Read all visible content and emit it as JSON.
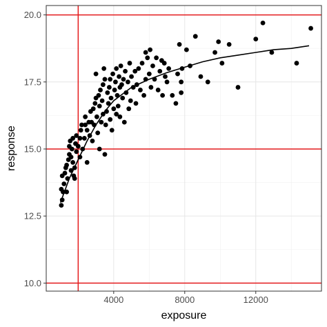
{
  "chart_data": {
    "type": "scatter",
    "title": "",
    "xlabel": "exposure",
    "ylabel": "response",
    "xlim": [
      200,
      15700
    ],
    "ylim": [
      9.7,
      20.35
    ],
    "x_ticks": [
      4000,
      8000,
      12000
    ],
    "x_tick_labels": [
      "4000",
      "8000",
      "12000"
    ],
    "y_ticks": [
      10.0,
      12.5,
      15.0,
      17.5,
      20.0
    ],
    "y_tick_labels": [
      "10.0",
      "12.5",
      "15.0",
      "17.5",
      "20.0"
    ],
    "grid": true,
    "legend": "none",
    "reference_lines": {
      "horizontal": [
        10.0,
        15.0,
        20.0
      ],
      "vertical": [
        2000
      ],
      "color": "#e41a1c"
    },
    "trend_line": {
      "color": "#000000",
      "points": [
        [
          1000,
          13.0
        ],
        [
          1500,
          13.9
        ],
        [
          2000,
          14.6
        ],
        [
          2500,
          15.3
        ],
        [
          3000,
          15.9
        ],
        [
          3500,
          16.4
        ],
        [
          4000,
          16.8
        ],
        [
          5000,
          17.3
        ],
        [
          6000,
          17.6
        ],
        [
          7000,
          17.85
        ],
        [
          8000,
          18.05
        ],
        [
          9000,
          18.25
        ],
        [
          10000,
          18.4
        ],
        [
          11000,
          18.5
        ],
        [
          12000,
          18.6
        ],
        [
          13000,
          18.7
        ],
        [
          14000,
          18.75
        ],
        [
          15000,
          18.85
        ]
      ]
    },
    "point_color": "#000000",
    "points": [
      [
        1050,
        12.9
      ],
      [
        1100,
        13.1
      ],
      [
        1050,
        13.5
      ],
      [
        1150,
        13.4
      ],
      [
        1200,
        13.7
      ],
      [
        1100,
        14.0
      ],
      [
        1250,
        14.1
      ],
      [
        1350,
        13.4
      ],
      [
        1400,
        13.9
      ],
      [
        1350,
        14.4
      ],
      [
        1450,
        14.6
      ],
      [
        1300,
        14.3
      ],
      [
        1500,
        14.8
      ],
      [
        1600,
        14.2
      ],
      [
        1700,
        14.5
      ],
      [
        1600,
        14.7
      ],
      [
        1750,
        14.0
      ],
      [
        1800,
        14.3
      ],
      [
        1800,
        13.9
      ],
      [
        1500,
        15.1
      ],
      [
        1550,
        15.3
      ],
      [
        1650,
        15.0
      ],
      [
        1700,
        15.4
      ],
      [
        1850,
        15.2
      ],
      [
        1900,
        14.9
      ],
      [
        1900,
        15.5
      ],
      [
        2000,
        15.1
      ],
      [
        2100,
        14.7
      ],
      [
        2100,
        15.4
      ],
      [
        2150,
        15.7
      ],
      [
        2250,
        15.0
      ],
      [
        2200,
        15.9
      ],
      [
        2350,
        15.4
      ],
      [
        2400,
        15.9
      ],
      [
        2400,
        16.2
      ],
      [
        2500,
        15.7
      ],
      [
        2500,
        14.5
      ],
      [
        2600,
        16.0
      ],
      [
        2650,
        15.5
      ],
      [
        2700,
        16.4
      ],
      [
        2750,
        16.0
      ],
      [
        2800,
        15.3
      ],
      [
        2850,
        16.5
      ],
      [
        2900,
        15.9
      ],
      [
        2950,
        16.7
      ],
      [
        3000,
        17.8
      ],
      [
        3000,
        16.9
      ],
      [
        3050,
        16.2
      ],
      [
        3100,
        15.6
      ],
      [
        3150,
        17.0
      ],
      [
        3200,
        15.0
      ],
      [
        3200,
        16.6
      ],
      [
        3250,
        17.2
      ],
      [
        3300,
        16.0
      ],
      [
        3350,
        16.8
      ],
      [
        3400,
        17.4
      ],
      [
        3400,
        16.3
      ],
      [
        3450,
        18.0
      ],
      [
        3500,
        14.8
      ],
      [
        3500,
        17.6
      ],
      [
        3550,
        15.9
      ],
      [
        3600,
        16.4
      ],
      [
        3650,
        17.1
      ],
      [
        3700,
        16.7
      ],
      [
        3750,
        17.3
      ],
      [
        3800,
        16.1
      ],
      [
        3800,
        17.6
      ],
      [
        3850,
        16.9
      ],
      [
        3900,
        15.7
      ],
      [
        3950,
        17.8
      ],
      [
        4000,
        16.5
      ],
      [
        4050,
        17.2
      ],
      [
        4100,
        17.5
      ],
      [
        4150,
        16.3
      ],
      [
        4150,
        18.0
      ],
      [
        4200,
        17.0
      ],
      [
        4250,
        16.6
      ],
      [
        4300,
        17.7
      ],
      [
        4350,
        16.2
      ],
      [
        4350,
        17.3
      ],
      [
        4400,
        18.1
      ],
      [
        4450,
        17.4
      ],
      [
        4500,
        16.9
      ],
      [
        4550,
        17.6
      ],
      [
        4600,
        16.0
      ],
      [
        4650,
        17.9
      ],
      [
        4700,
        17.1
      ],
      [
        4800,
        17.5
      ],
      [
        4850,
        16.5
      ],
      [
        4900,
        18.2
      ],
      [
        4950,
        16.8
      ],
      [
        5000,
        17.7
      ],
      [
        5100,
        17.3
      ],
      [
        5200,
        17.9
      ],
      [
        5250,
        16.7
      ],
      [
        5300,
        17.4
      ],
      [
        5400,
        18.0
      ],
      [
        5500,
        17.2
      ],
      [
        5600,
        18.2
      ],
      [
        5700,
        17.0
      ],
      [
        5800,
        18.6
      ],
      [
        5800,
        17.6
      ],
      [
        5900,
        18.4
      ],
      [
        6000,
        17.8
      ],
      [
        6050,
        18.7
      ],
      [
        6100,
        17.3
      ],
      [
        6200,
        18.1
      ],
      [
        6300,
        17.6
      ],
      [
        6400,
        18.4
      ],
      [
        6500,
        17.2
      ],
      [
        6600,
        17.9
      ],
      [
        6700,
        18.3
      ],
      [
        6750,
        17.0
      ],
      [
        6850,
        18.2
      ],
      [
        6900,
        17.7
      ],
      [
        7000,
        17.5
      ],
      [
        7100,
        18.0
      ],
      [
        7300,
        17.0
      ],
      [
        7500,
        16.7
      ],
      [
        7600,
        17.8
      ],
      [
        7700,
        18.9
      ],
      [
        7800,
        17.5
      ],
      [
        7800,
        17.1
      ],
      [
        7850,
        18.0
      ],
      [
        8100,
        18.7
      ],
      [
        8300,
        18.1
      ],
      [
        8600,
        19.2
      ],
      [
        8900,
        17.7
      ],
      [
        9300,
        17.5
      ],
      [
        9700,
        18.6
      ],
      [
        9900,
        19.0
      ],
      [
        10100,
        18.2
      ],
      [
        10500,
        18.9
      ],
      [
        11000,
        17.3
      ],
      [
        12000,
        19.1
      ],
      [
        12400,
        19.7
      ],
      [
        12900,
        18.6
      ],
      [
        14300,
        18.2
      ],
      [
        15100,
        19.5
      ]
    ]
  }
}
